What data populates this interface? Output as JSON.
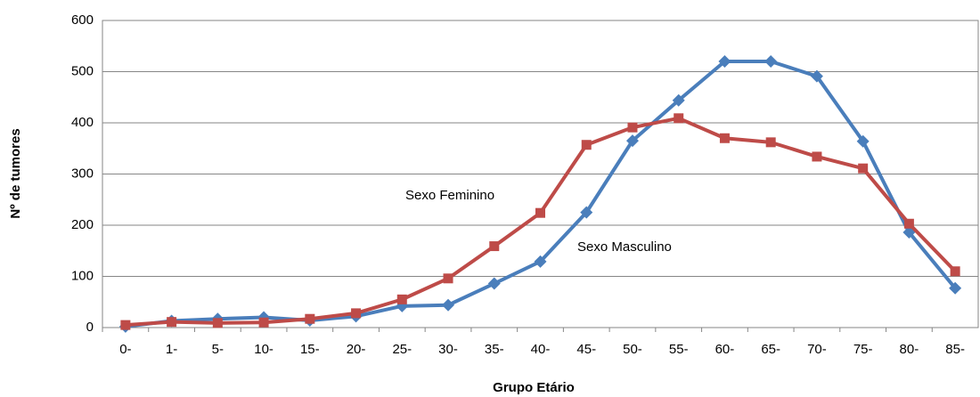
{
  "chart_data": {
    "type": "line",
    "x_label": "Grupo Etário",
    "y_label": "Nº de tumores",
    "categories": [
      "0-",
      "1-",
      "5-",
      "10-",
      "15-",
      "20-",
      "25-",
      "30-",
      "35-",
      "40-",
      "45-",
      "50-",
      "55-",
      "60-",
      "65-",
      "70-",
      "75-",
      "80-",
      "85-"
    ],
    "series": [
      {
        "name": "Sexo Masculino",
        "color": "#4a7ebb",
        "marker": "diamond",
        "values": [
          2,
          13,
          17,
          20,
          14,
          22,
          42,
          44,
          86,
          129,
          225,
          365,
          444,
          520,
          520,
          491,
          364,
          186,
          77
        ]
      },
      {
        "name": "Sexo Feminino",
        "color": "#be4b48",
        "marker": "square",
        "values": [
          5,
          11,
          9,
          10,
          17,
          28,
          55,
          96,
          159,
          224,
          357,
          391,
          409,
          370,
          362,
          334,
          311,
          203,
          110
        ]
      }
    ],
    "ylim": [
      0,
      600
    ],
    "yticks": [
      0,
      100,
      200,
      300,
      400,
      500,
      600
    ],
    "grid": true
  }
}
